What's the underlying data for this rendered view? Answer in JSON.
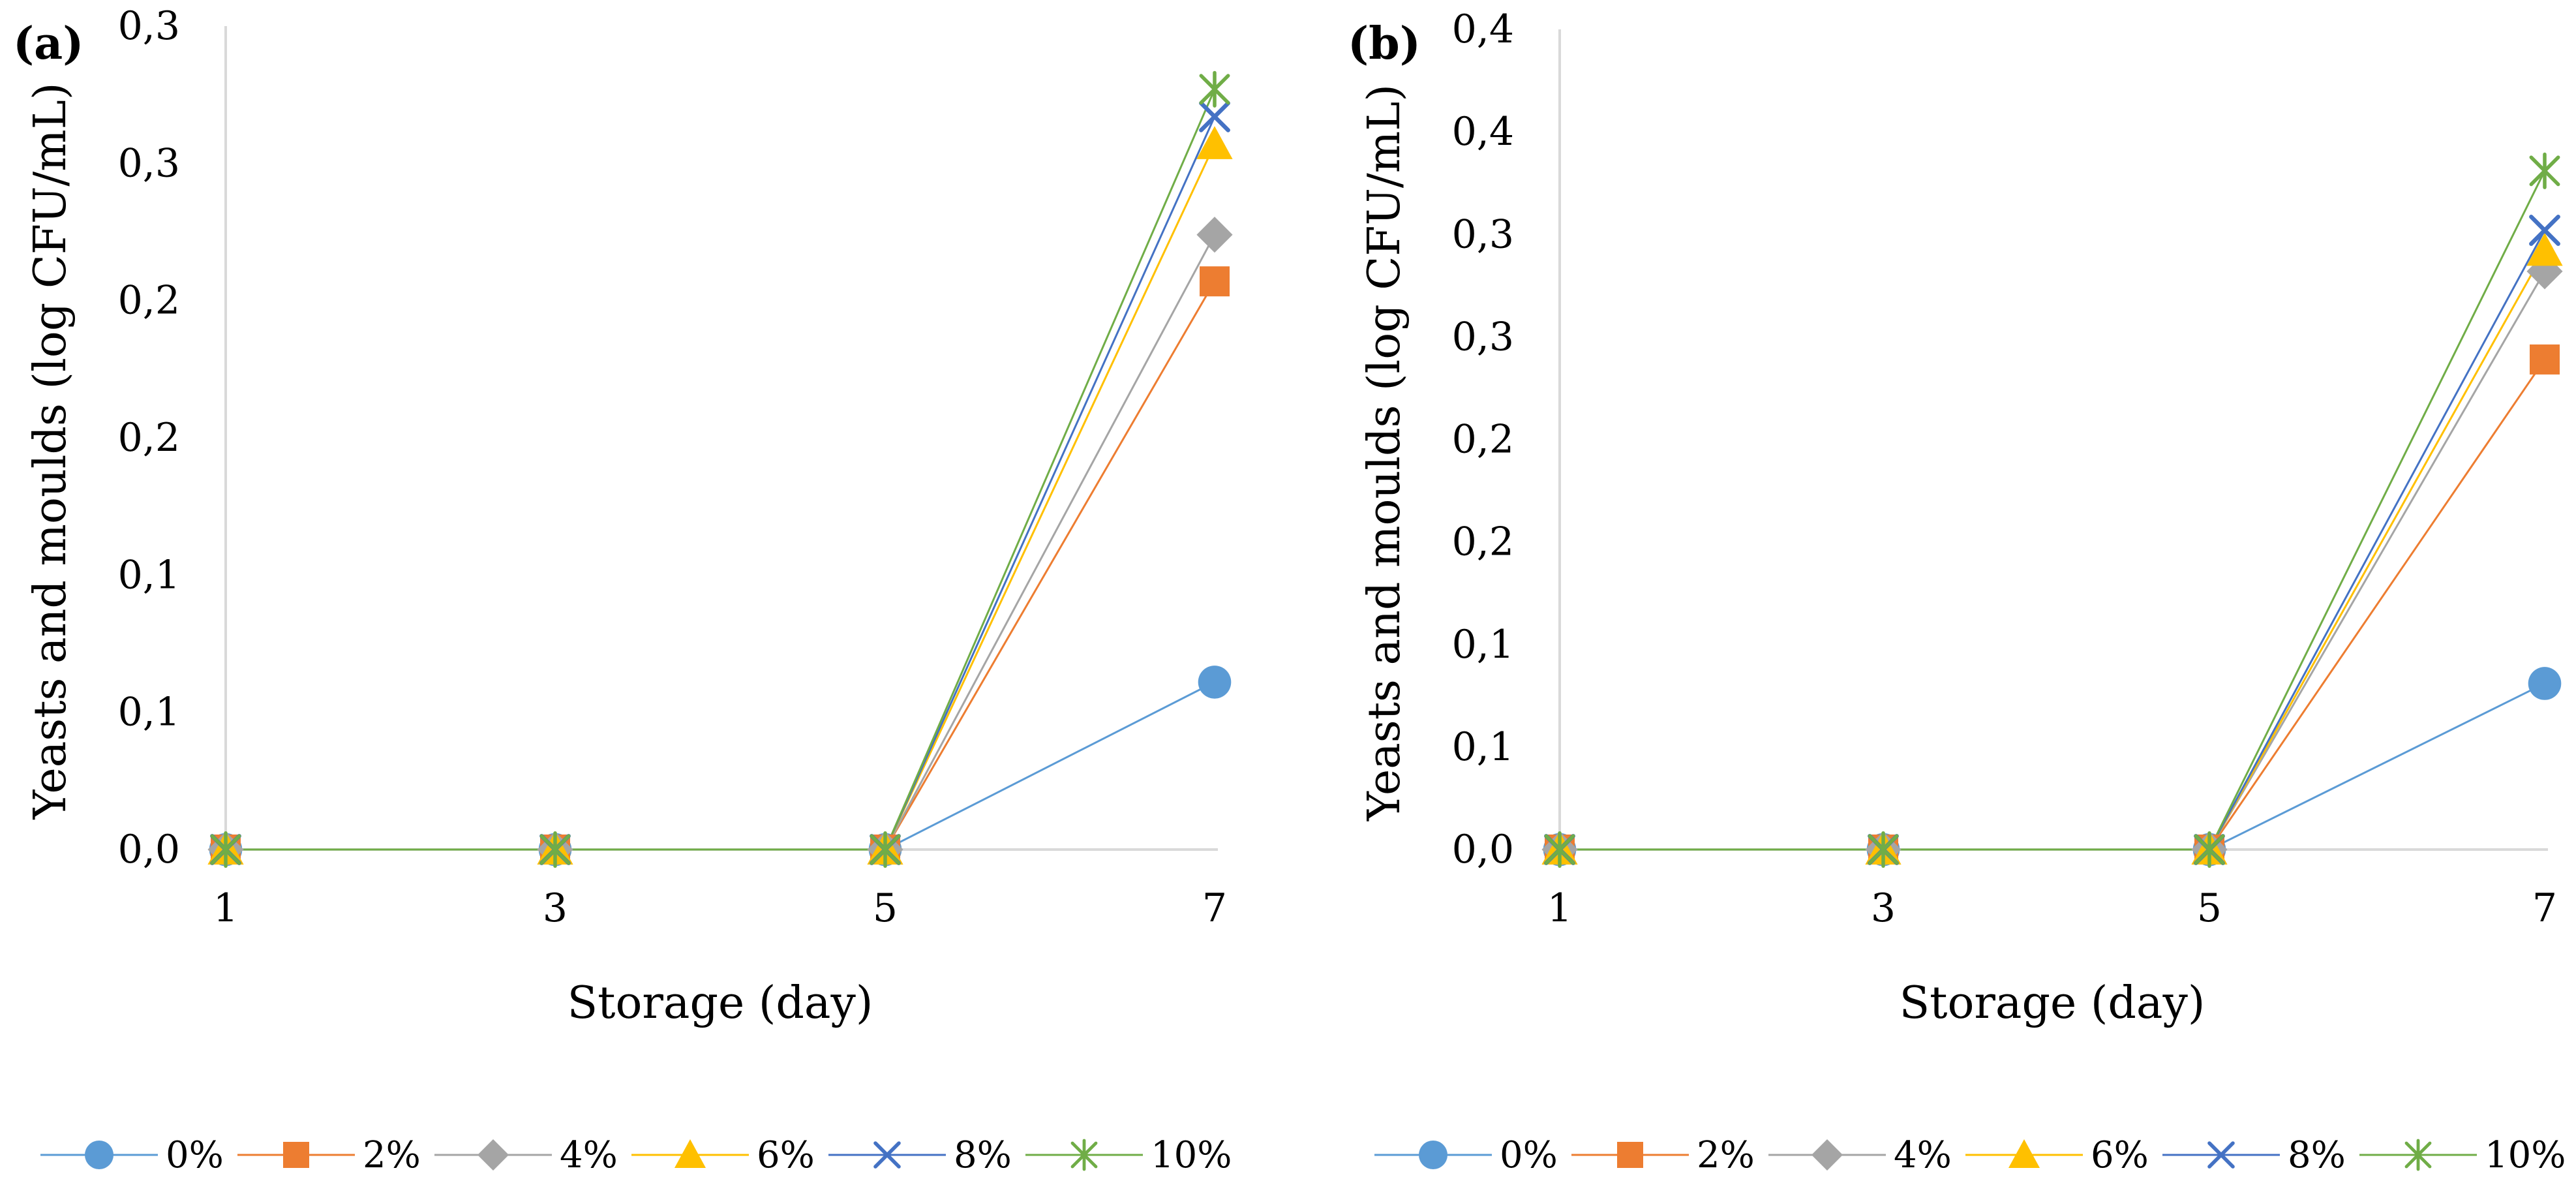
{
  "series_style": [
    {
      "color": "#5B9BD5",
      "marker": "circle"
    },
    {
      "color": "#ED7D31",
      "marker": "square"
    },
    {
      "color": "#A5A5A5",
      "marker": "diamond"
    },
    {
      "color": "#FFC000",
      "marker": "triangle"
    },
    {
      "color": "#4472C4",
      "marker": "x"
    },
    {
      "color": "#70AD47",
      "marker": "asterisk"
    }
  ],
  "chart_data": [
    {
      "type": "line",
      "panel_label": "(a)",
      "xlabel": "Storage (day)",
      "ylabel": "Yeasts and moulds (log CFU/mL)",
      "categories": [
        "1",
        "3",
        "5",
        "7"
      ],
      "ylim": [
        0,
        0.3
      ],
      "yticks": [
        0,
        0.05,
        0.1,
        0.15,
        0.2,
        0.25,
        0.3
      ],
      "ytick_labels": [
        "0,0",
        "0,1",
        "0,1",
        "0,2",
        "0,2",
        "0,3",
        "0,3"
      ],
      "series": [
        {
          "name": "0%",
          "values": [
            0,
            0,
            0,
            0.061
          ]
        },
        {
          "name": "2%",
          "values": [
            0,
            0,
            0,
            0.207
          ]
        },
        {
          "name": "4%",
          "values": [
            0,
            0,
            0,
            0.224
          ]
        },
        {
          "name": "6%",
          "values": [
            0,
            0,
            0,
            0.257
          ]
        },
        {
          "name": "8%",
          "values": [
            0,
            0,
            0,
            0.267
          ]
        },
        {
          "name": "10%",
          "values": [
            0,
            0,
            0,
            0.277
          ]
        }
      ],
      "legend_position": "bottom"
    },
    {
      "type": "line",
      "panel_label": "(b)",
      "xlabel": "Storage (day)",
      "ylabel": "Yeasts and moulds (log CFU/mL)",
      "categories": [
        "1",
        "3",
        "5",
        "7"
      ],
      "ylim": [
        0,
        0.4
      ],
      "yticks": [
        0,
        0.05,
        0.1,
        0.15,
        0.2,
        0.25,
        0.3,
        0.35,
        0.4
      ],
      "ytick_labels": [
        "0,0",
        "0,1",
        "0,1",
        "0,2",
        "0,2",
        "0,3",
        "0,3",
        "0,4",
        "0,4"
      ],
      "series": [
        {
          "name": "0%",
          "values": [
            0,
            0,
            0,
            0.081
          ]
        },
        {
          "name": "2%",
          "values": [
            0,
            0,
            0,
            0.239
          ]
        },
        {
          "name": "4%",
          "values": [
            0,
            0,
            0,
            0.282
          ]
        },
        {
          "name": "6%",
          "values": [
            0,
            0,
            0,
            0.292
          ]
        },
        {
          "name": "8%",
          "values": [
            0,
            0,
            0,
            0.302
          ]
        },
        {
          "name": "10%",
          "values": [
            0,
            0,
            0,
            0.331
          ]
        }
      ],
      "legend_position": "bottom"
    }
  ]
}
